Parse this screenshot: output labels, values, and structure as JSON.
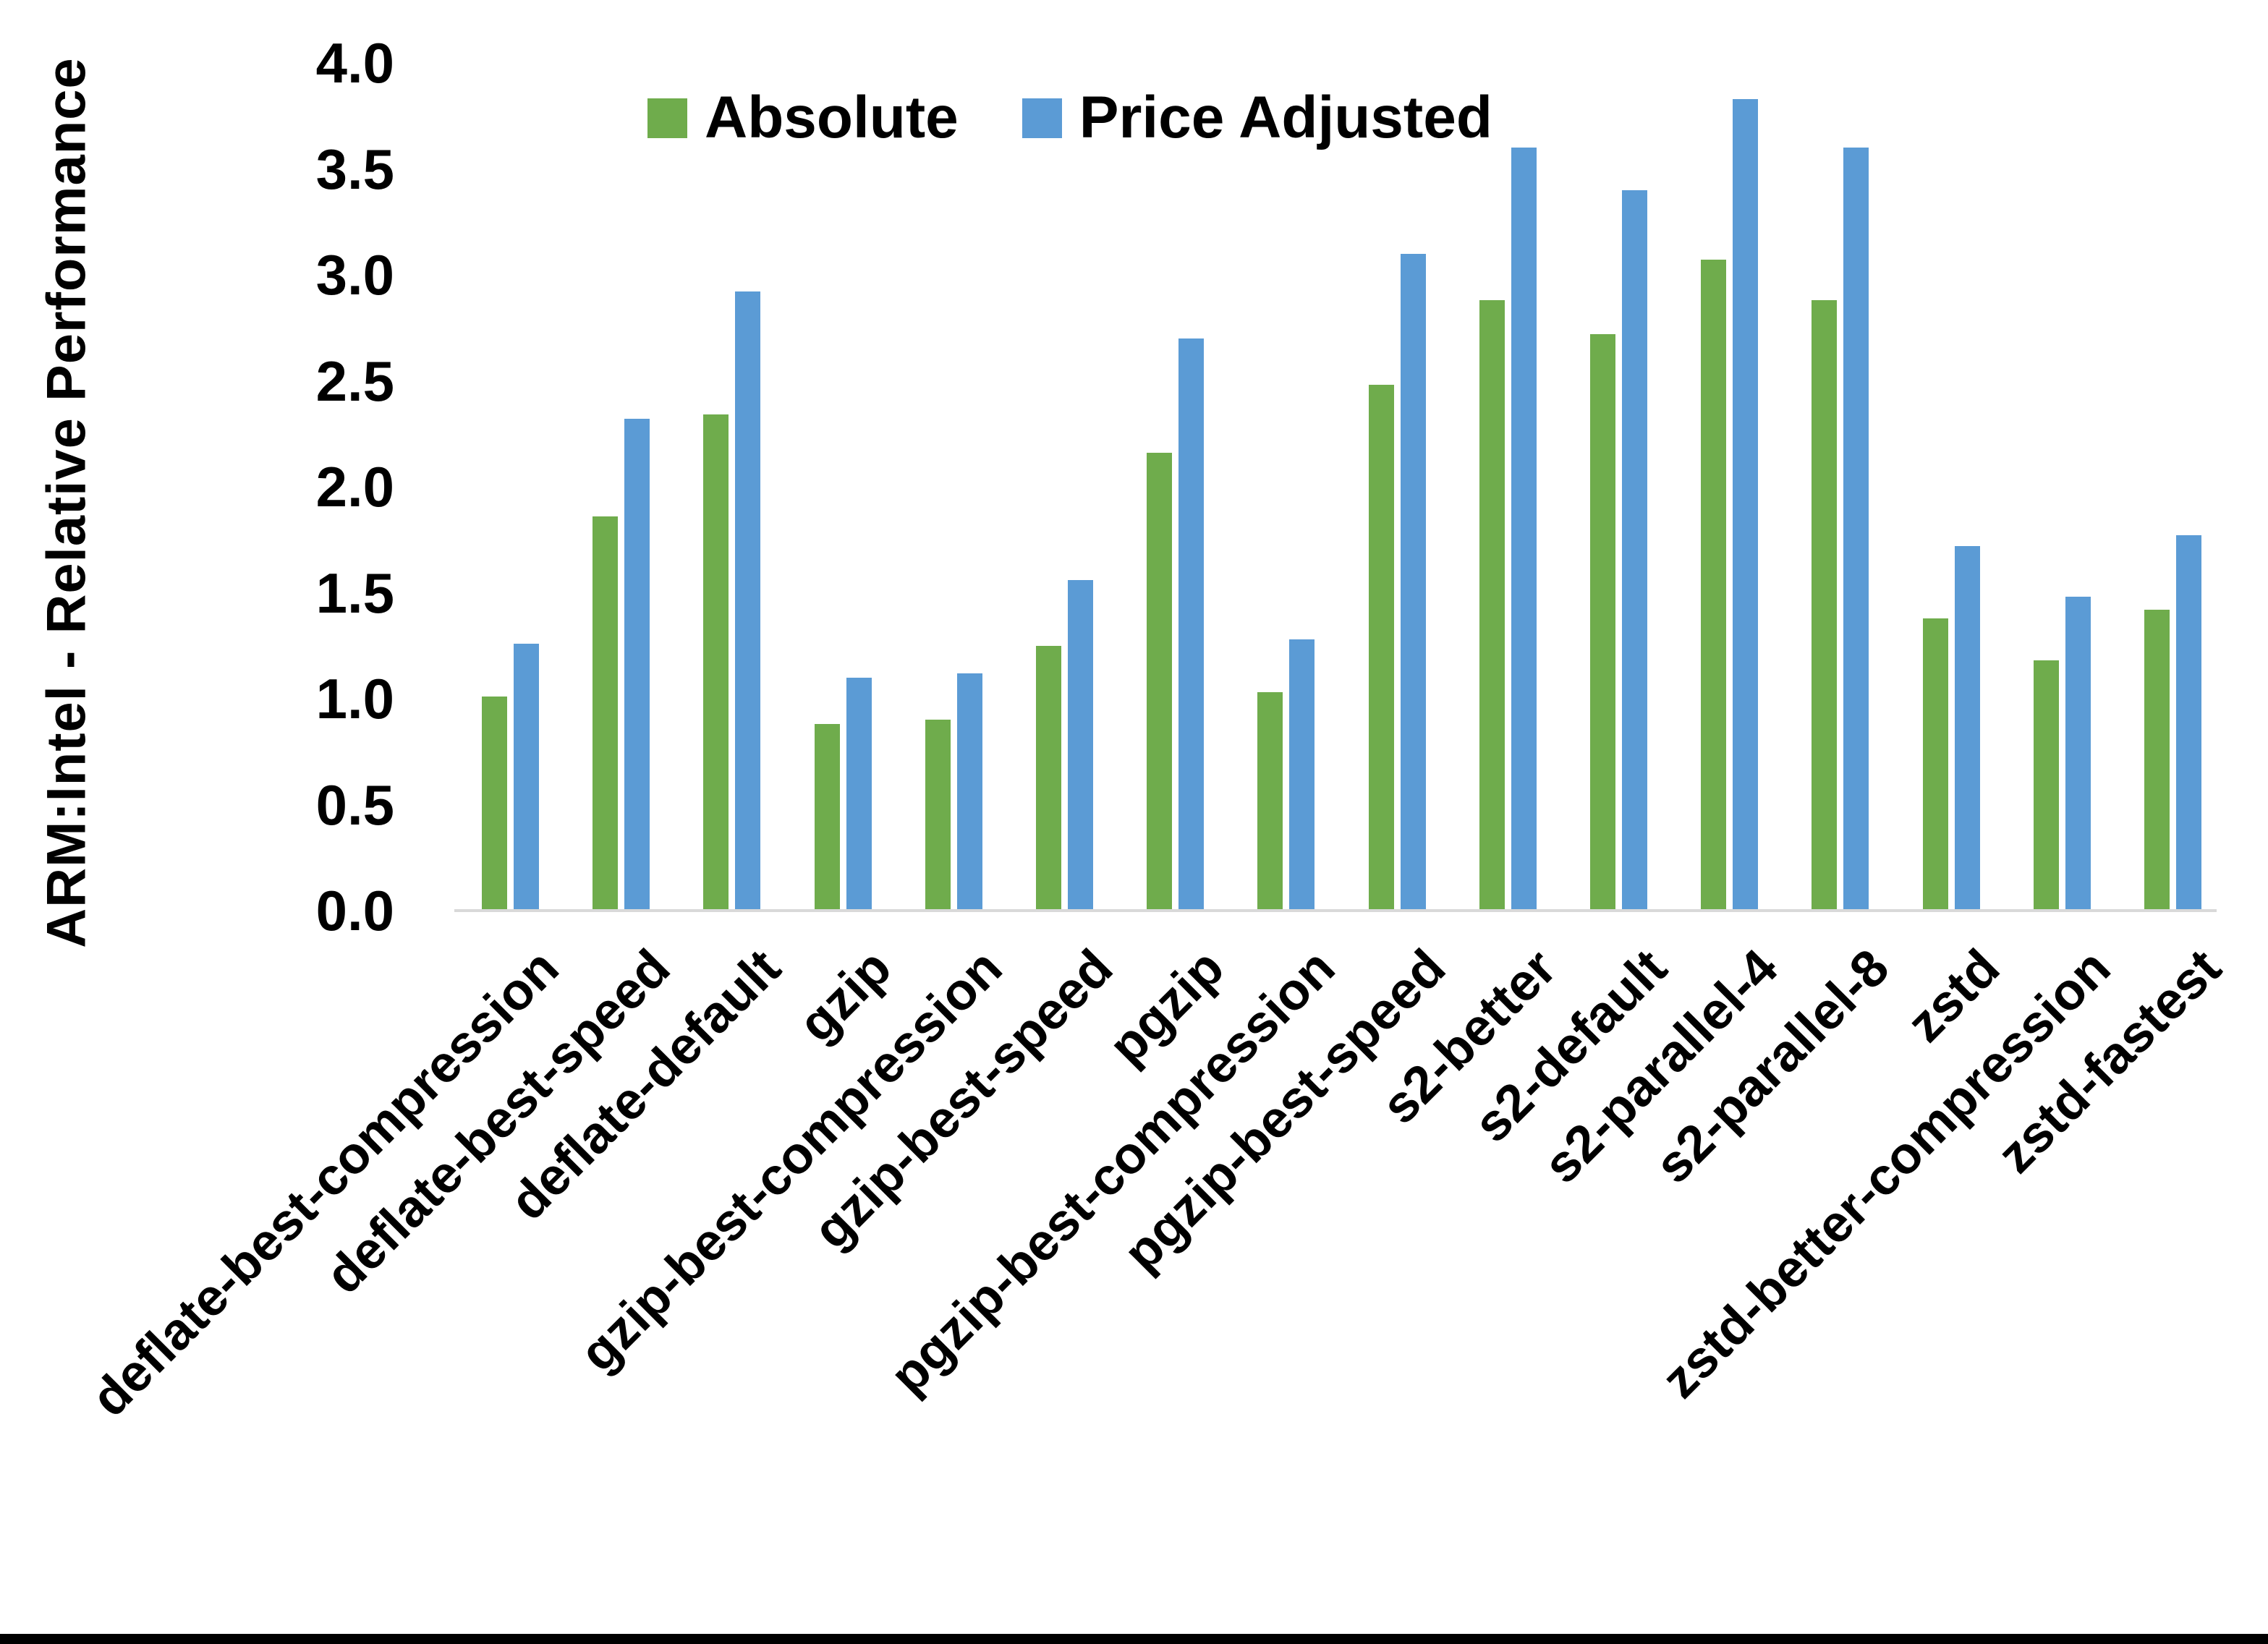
{
  "page": {
    "background_color": "#ffffff",
    "bottom_border_color": "#000000"
  },
  "chart_data": {
    "type": "bar",
    "title": "",
    "xlabel": "",
    "ylabel": "ARM:Intel - Relative Performance",
    "ylim": [
      0.0,
      4.0
    ],
    "ytick_step": 0.5,
    "grid": false,
    "legend_position": "top-center",
    "axis_line_color": "#d9d9d9",
    "text_color": "#000000",
    "categories": [
      "deflate-best-compression",
      "deflate-best-speed",
      "deflate-default",
      "gzip",
      "gzip-best-compression",
      "gzip-best-speed",
      "pgzip",
      "pgzip-best-compression",
      "pgzip-best-speed",
      "s2-better",
      "s2-default",
      "s2-parallel-4",
      "s2-parallel-8",
      "zstd",
      "zstd-better-compression",
      "zstd-fastest"
    ],
    "series": [
      {
        "name": "Absolute",
        "color": "#6fac4c",
        "values": [
          1.01,
          1.86,
          2.34,
          0.88,
          0.9,
          1.25,
          2.16,
          1.03,
          2.48,
          2.88,
          2.72,
          3.07,
          2.88,
          1.38,
          1.18,
          1.42
        ]
      },
      {
        "name": "Price Adjusted",
        "color": "#5b9bd5",
        "values": [
          1.26,
          2.32,
          2.92,
          1.1,
          1.12,
          1.56,
          2.7,
          1.28,
          3.1,
          3.6,
          3.4,
          3.83,
          3.6,
          1.72,
          1.48,
          1.77
        ]
      }
    ]
  }
}
